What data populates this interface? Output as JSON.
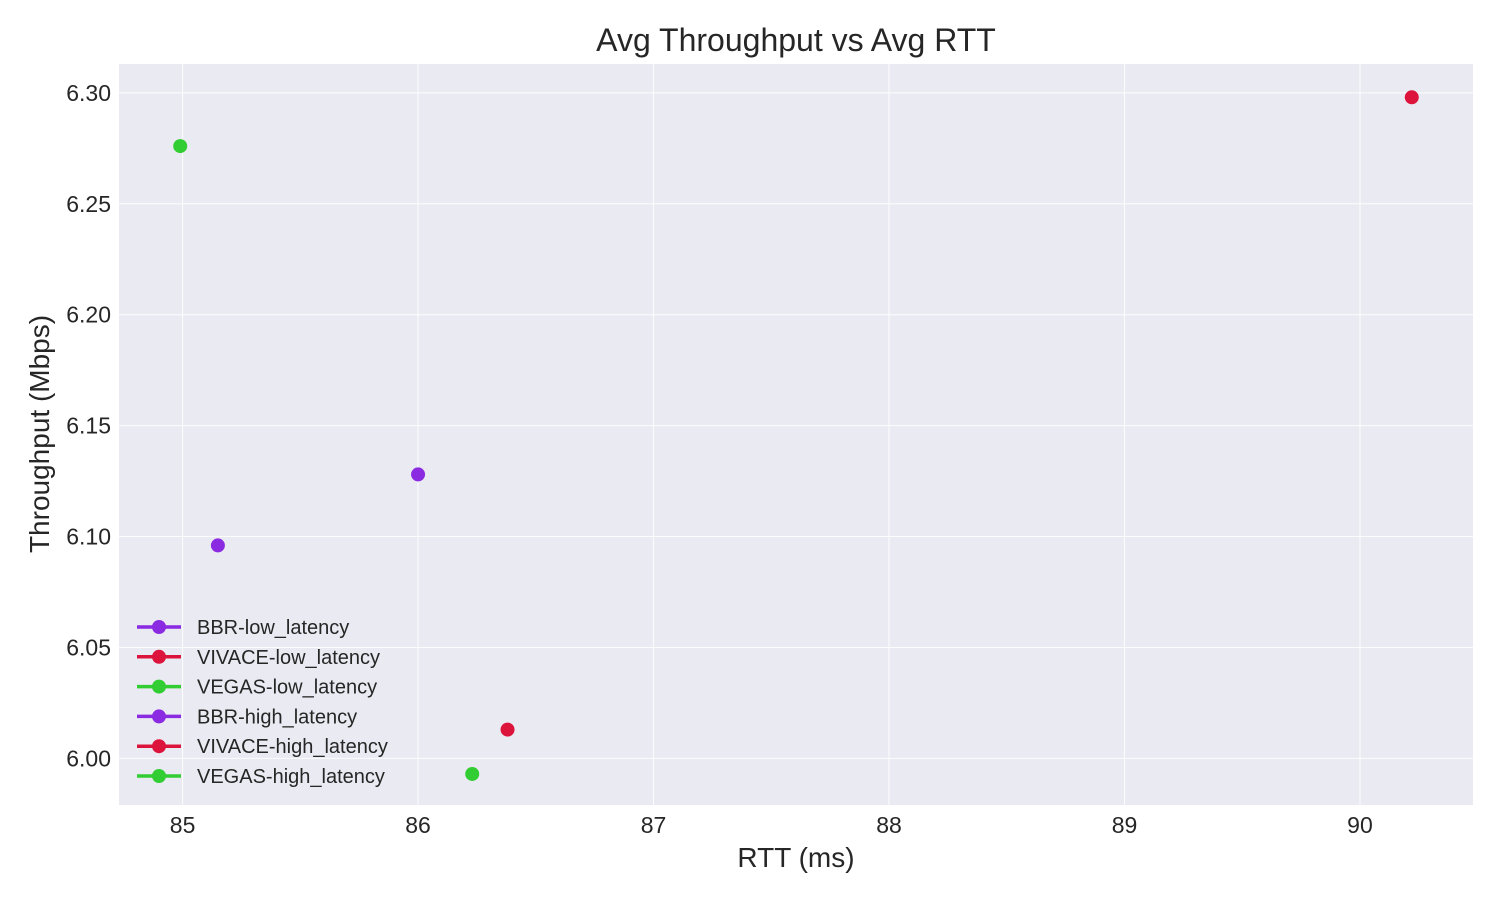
{
  "chart_data": {
    "type": "scatter",
    "title": "Avg Throughput vs Avg RTT",
    "xlabel": "RTT (ms)",
    "ylabel": "Throughput (Mbps)",
    "xlim": [
      84.73,
      90.48
    ],
    "ylim": [
      5.979,
      6.313
    ],
    "x_ticks": [
      85,
      86,
      87,
      88,
      89,
      90
    ],
    "x_tick_labels": [
      "85",
      "86",
      "87",
      "88",
      "89",
      "90"
    ],
    "y_ticks": [
      6.0,
      6.05,
      6.1,
      6.15,
      6.2,
      6.25,
      6.3
    ],
    "y_tick_labels": [
      "6.00",
      "6.05",
      "6.10",
      "6.15",
      "6.20",
      "6.25",
      "6.30"
    ],
    "grid": true,
    "legend_position": "lower-left",
    "series": [
      {
        "name": "BBR-low_latency",
        "color": "#8a2be2",
        "points": [
          {
            "x": 86.0,
            "y": 6.128
          }
        ]
      },
      {
        "name": "VIVACE-low_latency",
        "color": "#dc143c",
        "points": [
          {
            "x": 90.22,
            "y": 6.298
          }
        ]
      },
      {
        "name": "VEGAS-low_latency",
        "color": "#32cd32",
        "points": [
          {
            "x": 84.99,
            "y": 6.276
          }
        ]
      },
      {
        "name": "BBR-high_latency",
        "color": "#8a2be2",
        "points": [
          {
            "x": 85.15,
            "y": 6.096
          }
        ]
      },
      {
        "name": "VIVACE-high_latency",
        "color": "#dc143c",
        "points": [
          {
            "x": 86.38,
            "y": 6.013
          }
        ]
      },
      {
        "name": "VEGAS-high_latency",
        "color": "#32cd32",
        "points": [
          {
            "x": 86.23,
            "y": 5.993
          }
        ]
      }
    ]
  }
}
